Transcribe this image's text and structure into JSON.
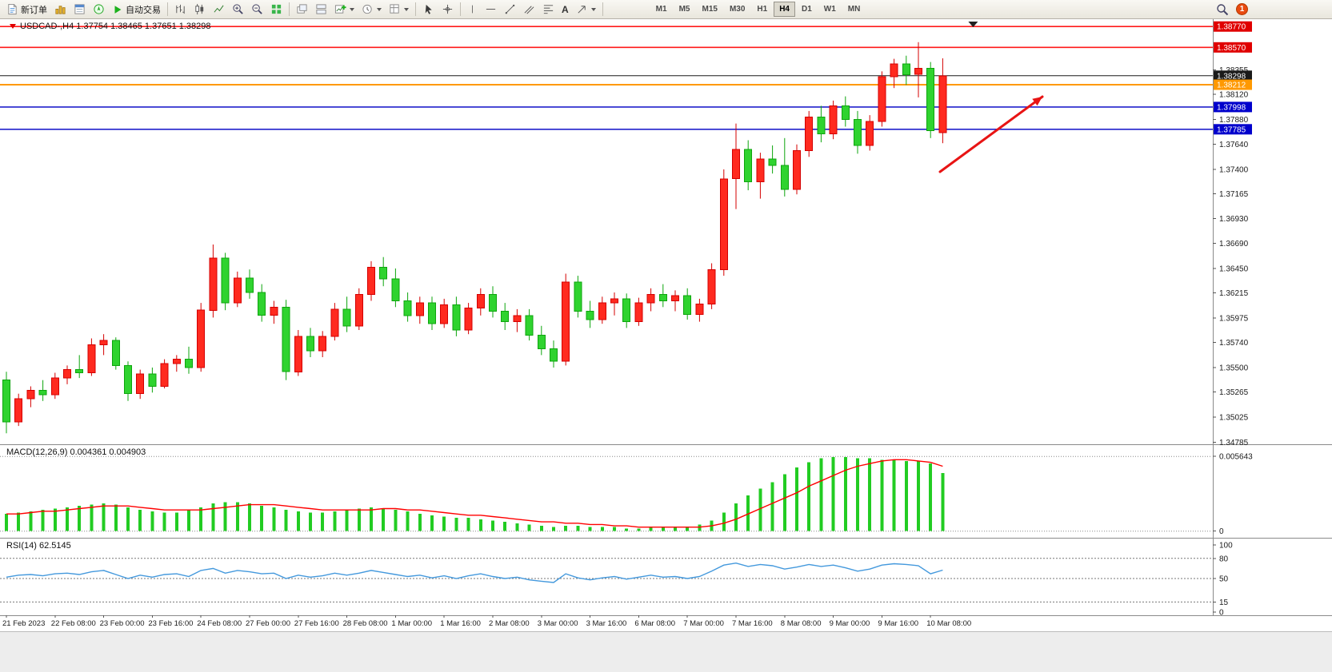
{
  "window": {
    "title": "USDCAD-,H4"
  },
  "toolbar": {
    "new_order_label": "新订单",
    "auto_trading_label": "自动交易",
    "text_tool_label": "A",
    "timeframes": [
      "M1",
      "M5",
      "M15",
      "M30",
      "H1",
      "H4",
      "D1",
      "W1",
      "MN"
    ],
    "active_timeframe": "H4",
    "notification_count": "1",
    "icons": [
      "new-order-icon",
      "market-watch-icon",
      "data-window-icon",
      "navigator-icon",
      "auto-trading-play-icon",
      "bar-chart-icon",
      "candlestick-chart-icon",
      "line-chart-icon",
      "zoom-in-icon",
      "zoom-out-icon",
      "tile-windows-icon",
      "cascade-windows-icon",
      "tile-horizontal-icon",
      "new-chart-icon",
      "clock-icon",
      "template-icon",
      "cursor-icon",
      "crosshair-icon",
      "vertical-line-icon",
      "horizontal-line-icon",
      "trendline-icon",
      "channel-icon",
      "fibonacci-icon",
      "text-icon",
      "arrow-tool-icon",
      "search-icon"
    ]
  },
  "chart": {
    "title": "USDCAD-,H4  1.37754 1.38465 1.37651 1.38298",
    "symbol": "USDCAD-",
    "timeframe": "H4",
    "ohlc": {
      "open": "1.37754",
      "high": "1.38465",
      "low": "1.37651",
      "close": "1.38298"
    },
    "macd_label": "MACD(12,26,9) 0.004361 0.004903",
    "rsi_label": "RSI(14) 62.5145"
  },
  "chart_data": [
    {
      "type": "candlestick",
      "title": "USDCAD-,H4",
      "ylim": [
        1.3478,
        1.38825
      ],
      "y_ticks": [
        1.38355,
        1.3812,
        1.3788,
        1.3764,
        1.374,
        1.37165,
        1.3693,
        1.3669,
        1.3645,
        1.36215,
        1.35975,
        1.3574,
        1.355,
        1.35265,
        1.35025,
        1.34785
      ],
      "x_labels": [
        "21 Feb 2023",
        "22 Feb 08:00",
        "23 Feb 00:00",
        "23 Feb 16:00",
        "24 Feb 08:00",
        "27 Feb 00:00",
        "27 Feb 16:00",
        "28 Feb 08:00",
        "1 Mar 00:00",
        "1 Mar 16:00",
        "2 Mar 08:00",
        "3 Mar 00:00",
        "3 Mar 16:00",
        "6 Mar 08:00",
        "7 Mar 00:00",
        "7 Mar 16:00",
        "8 Mar 08:00",
        "9 Mar 00:00",
        "9 Mar 16:00",
        "10 Mar 08:00"
      ],
      "bars_per_label": 4,
      "up_color": "#d40000",
      "up_fill": "#ff2a1f",
      "down_color": "#0da50d",
      "down_fill": "#2fd32f",
      "candles": [
        [
          1.3538,
          1.3546,
          1.3487,
          1.3498
        ],
        [
          1.3498,
          1.3525,
          1.3494,
          1.352
        ],
        [
          1.352,
          1.3532,
          1.3512,
          1.3528
        ],
        [
          1.3528,
          1.3538,
          1.3518,
          1.3524
        ],
        [
          1.3524,
          1.3545,
          1.352,
          1.354
        ],
        [
          1.354,
          1.3552,
          1.3534,
          1.3548
        ],
        [
          1.3548,
          1.3562,
          1.354,
          1.3545
        ],
        [
          1.3545,
          1.3578,
          1.3542,
          1.3572
        ],
        [
          1.3572,
          1.3582,
          1.3562,
          1.3576
        ],
        [
          1.3576,
          1.3579,
          1.3548,
          1.3552
        ],
        [
          1.3552,
          1.3556,
          1.3518,
          1.3525
        ],
        [
          1.3525,
          1.3548,
          1.352,
          1.3544
        ],
        [
          1.3544,
          1.355,
          1.3526,
          1.3532
        ],
        [
          1.3532,
          1.3558,
          1.353,
          1.3554
        ],
        [
          1.3554,
          1.3562,
          1.3546,
          1.3558
        ],
        [
          1.3558,
          1.357,
          1.3544,
          1.355
        ],
        [
          1.355,
          1.3612,
          1.3546,
          1.3605
        ],
        [
          1.3605,
          1.3668,
          1.3598,
          1.3655
        ],
        [
          1.3655,
          1.366,
          1.3605,
          1.3612
        ],
        [
          1.3612,
          1.3642,
          1.3608,
          1.3636
        ],
        [
          1.3636,
          1.3644,
          1.3616,
          1.3622
        ],
        [
          1.3622,
          1.363,
          1.3594,
          1.36
        ],
        [
          1.36,
          1.3614,
          1.3592,
          1.3608
        ],
        [
          1.3608,
          1.3615,
          1.3538,
          1.3546
        ],
        [
          1.3546,
          1.3586,
          1.3542,
          1.358
        ],
        [
          1.358,
          1.3588,
          1.356,
          1.3566
        ],
        [
          1.3566,
          1.3585,
          1.356,
          1.358
        ],
        [
          1.358,
          1.3612,
          1.3576,
          1.3606
        ],
        [
          1.3606,
          1.3618,
          1.3584,
          1.359
        ],
        [
          1.359,
          1.3626,
          1.3586,
          1.362
        ],
        [
          1.362,
          1.3652,
          1.3614,
          1.3646
        ],
        [
          1.3646,
          1.3656,
          1.3628,
          1.3635
        ],
        [
          1.3635,
          1.3645,
          1.3608,
          1.3614
        ],
        [
          1.3614,
          1.3622,
          1.3594,
          1.36
        ],
        [
          1.36,
          1.3618,
          1.3592,
          1.3612
        ],
        [
          1.3612,
          1.3618,
          1.3586,
          1.3592
        ],
        [
          1.3592,
          1.3616,
          1.3588,
          1.361
        ],
        [
          1.361,
          1.3618,
          1.358,
          1.3586
        ],
        [
          1.3586,
          1.3612,
          1.3582,
          1.3607
        ],
        [
          1.3607,
          1.3626,
          1.36,
          1.362
        ],
        [
          1.362,
          1.3628,
          1.3598,
          1.3604
        ],
        [
          1.3604,
          1.3612,
          1.3586,
          1.3594
        ],
        [
          1.3594,
          1.3606,
          1.3584,
          1.36
        ],
        [
          1.36,
          1.3606,
          1.3576,
          1.3581
        ],
        [
          1.3581,
          1.359,
          1.3562,
          1.3568
        ],
        [
          1.3568,
          1.3576,
          1.355,
          1.3556
        ],
        [
          1.3556,
          1.364,
          1.3552,
          1.3632
        ],
        [
          1.3632,
          1.3638,
          1.3598,
          1.3604
        ],
        [
          1.3604,
          1.3614,
          1.3588,
          1.3596
        ],
        [
          1.3596,
          1.3618,
          1.3592,
          1.3612
        ],
        [
          1.3612,
          1.3622,
          1.36,
          1.3616
        ],
        [
          1.3616,
          1.3621,
          1.3588,
          1.3594
        ],
        [
          1.3594,
          1.3617,
          1.359,
          1.3612
        ],
        [
          1.3612,
          1.3626,
          1.3604,
          1.362
        ],
        [
          1.362,
          1.363,
          1.3608,
          1.3614
        ],
        [
          1.3614,
          1.3624,
          1.3604,
          1.3619
        ],
        [
          1.3619,
          1.3626,
          1.3596,
          1.3601
        ],
        [
          1.3601,
          1.3616,
          1.3594,
          1.3611
        ],
        [
          1.3611,
          1.365,
          1.3606,
          1.3644
        ],
        [
          1.3644,
          1.374,
          1.3638,
          1.3731
        ],
        [
          1.3731,
          1.3784,
          1.3702,
          1.3759
        ],
        [
          1.3759,
          1.3768,
          1.372,
          1.3728
        ],
        [
          1.3728,
          1.3756,
          1.3712,
          1.375
        ],
        [
          1.375,
          1.3763,
          1.3736,
          1.3744
        ],
        [
          1.3744,
          1.377,
          1.3714,
          1.3721
        ],
        [
          1.3721,
          1.3764,
          1.3716,
          1.3758
        ],
        [
          1.3758,
          1.3796,
          1.3752,
          1.379
        ],
        [
          1.379,
          1.3801,
          1.3766,
          1.3774
        ],
        [
          1.3774,
          1.3806,
          1.3769,
          1.3801
        ],
        [
          1.3801,
          1.381,
          1.3781,
          1.3788
        ],
        [
          1.3788,
          1.3796,
          1.3755,
          1.3763
        ],
        [
          1.3763,
          1.3792,
          1.3758,
          1.3786
        ],
        [
          1.3786,
          1.3834,
          1.3781,
          1.3829
        ],
        [
          1.3829,
          1.3846,
          1.3818,
          1.3841
        ],
        [
          1.3841,
          1.3849,
          1.3821,
          1.3831
        ],
        [
          1.3831,
          1.3862,
          1.3809,
          1.3837
        ],
        [
          1.3837,
          1.3843,
          1.377,
          1.3777
        ],
        [
          1.37754,
          1.38465,
          1.37651,
          1.38298
        ]
      ],
      "hlines": [
        {
          "price": 1.3877,
          "color": "#ff1a1a",
          "width": 1.6,
          "badge": "#e00000"
        },
        {
          "price": 1.3857,
          "color": "#ff1a1a",
          "width": 1.6,
          "badge": "#e00000"
        },
        {
          "price": 1.38298,
          "color": "#1a1a1a",
          "width": 1.0,
          "badge": "#1a1a1a"
        },
        {
          "price": 1.38212,
          "color": "#ff9900",
          "width": 2.0,
          "badge": "#ff9900"
        },
        {
          "price": 1.37998,
          "color": "#2020cc",
          "width": 1.6,
          "badge": "#0000cc"
        },
        {
          "price": 1.37785,
          "color": "#2020cc",
          "width": 1.6,
          "badge": "#0000cc"
        }
      ],
      "annotation_arrow": {
        "from": [
          1175,
          191
        ],
        "to": [
          1303,
          97
        ],
        "color": "#e81414"
      }
    },
    {
      "type": "bar",
      "name": "MACD(12,26,9)",
      "values": [
        0.004361,
        0.004903
      ],
      "ylim": [
        -0.0002,
        0.0062
      ],
      "y_ticks": [
        0.005643,
        0
      ],
      "histogram_color": "#22cc22",
      "signal_color": "#ff0000",
      "histogram": [
        0.0013,
        0.0014,
        0.0015,
        0.0016,
        0.0017,
        0.0018,
        0.0019,
        0.002,
        0.0021,
        0.002,
        0.0018,
        0.0016,
        0.0015,
        0.0014,
        0.0014,
        0.0016,
        0.0018,
        0.0021,
        0.0022,
        0.0022,
        0.0021,
        0.0019,
        0.0018,
        0.0016,
        0.0015,
        0.0014,
        0.0014,
        0.0015,
        0.0016,
        0.0017,
        0.0018,
        0.0017,
        0.0016,
        0.0015,
        0.0013,
        0.0012,
        0.0011,
        0.001,
        0.001,
        0.0009,
        0.0008,
        0.0007,
        0.0006,
        0.0005,
        0.0004,
        0.0003,
        0.0004,
        0.0004,
        0.0003,
        0.0003,
        0.0003,
        0.0002,
        0.0002,
        0.0003,
        0.0003,
        0.0003,
        0.0003,
        0.0005,
        0.0008,
        0.0014,
        0.0021,
        0.0027,
        0.0032,
        0.0037,
        0.0043,
        0.0048,
        0.0052,
        0.0055,
        0.0056,
        0.0056,
        0.0055,
        0.0055,
        0.0054,
        0.0054,
        0.0053,
        0.0053,
        0.0051,
        0.0044
      ],
      "signal": [
        0.0013,
        0.0013,
        0.0014,
        0.0015,
        0.0015,
        0.0016,
        0.0017,
        0.0018,
        0.0019,
        0.0019,
        0.0019,
        0.0018,
        0.0017,
        0.0016,
        0.0016,
        0.0016,
        0.0016,
        0.0017,
        0.0018,
        0.0019,
        0.002,
        0.002,
        0.002,
        0.0019,
        0.0018,
        0.0017,
        0.0016,
        0.0016,
        0.0016,
        0.0016,
        0.0016,
        0.0017,
        0.0017,
        0.0016,
        0.0016,
        0.0015,
        0.0014,
        0.0013,
        0.0012,
        0.0012,
        0.0011,
        0.001,
        0.0009,
        0.0008,
        0.0007,
        0.0007,
        0.0006,
        0.0006,
        0.0005,
        0.0005,
        0.0004,
        0.0004,
        0.0003,
        0.0003,
        0.0003,
        0.0003,
        0.0003,
        0.0003,
        0.0004,
        0.0006,
        0.0009,
        0.0013,
        0.0017,
        0.0021,
        0.0025,
        0.0029,
        0.0034,
        0.0038,
        0.0042,
        0.0046,
        0.0049,
        0.0051,
        0.0053,
        0.0054,
        0.0054,
        0.0053,
        0.0052,
        0.0049
      ]
    },
    {
      "type": "line",
      "name": "RSI(14)",
      "value": 62.5145,
      "ylim": [
        0,
        100
      ],
      "levels": [
        80,
        50,
        15
      ],
      "y_ticks": [
        100,
        80,
        50,
        15,
        0
      ],
      "line_color": "#4499dd",
      "values": [
        52,
        55,
        56,
        54,
        57,
        58,
        56,
        60,
        62,
        56,
        50,
        55,
        52,
        56,
        57,
        53,
        62,
        65,
        58,
        62,
        60,
        57,
        58,
        50,
        55,
        52,
        54,
        58,
        55,
        58,
        62,
        59,
        56,
        53,
        55,
        51,
        54,
        50,
        54,
        57,
        53,
        50,
        52,
        48,
        46,
        44,
        57,
        51,
        48,
        51,
        53,
        49,
        52,
        55,
        52,
        53,
        50,
        53,
        61,
        70,
        73,
        68,
        71,
        69,
        64,
        67,
        71,
        68,
        70,
        66,
        61,
        64,
        70,
        72,
        71,
        69,
        57,
        62.5
      ]
    }
  ]
}
